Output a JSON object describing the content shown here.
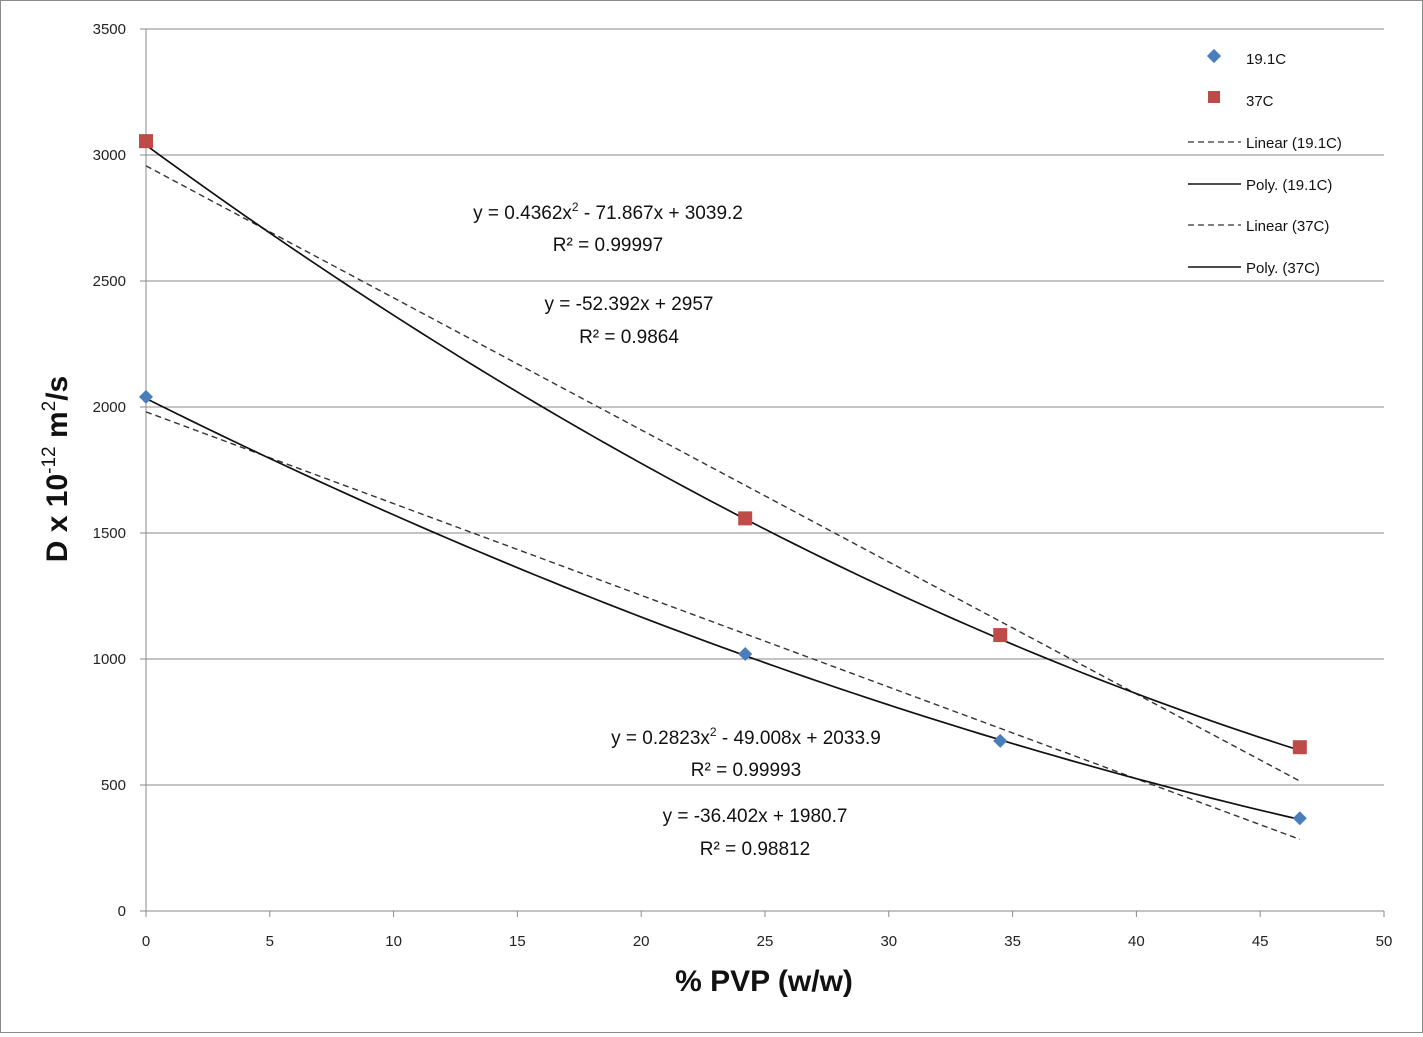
{
  "chart_data": {
    "type": "scatter",
    "title": "",
    "xlabel": "% PVP (w/w)",
    "ylabel": "D x 10-12 m2/s",
    "ylabel_parts": {
      "base": "D x 10",
      "exp1": "-12",
      "mid": " m",
      "exp2": "2",
      "end": "/s"
    },
    "xlim": [
      0,
      50
    ],
    "ylim": [
      0,
      3500
    ],
    "xticks": [
      0,
      5,
      10,
      15,
      20,
      25,
      30,
      35,
      40,
      45,
      50
    ],
    "yticks": [
      0,
      500,
      1000,
      1500,
      2000,
      2500,
      3000,
      3500
    ],
    "grid": "horizontal",
    "legend_position": "top-right",
    "series": [
      {
        "name": "19.1C",
        "marker": "diamond",
        "color": "#4a7ebb",
        "x": [
          0,
          24.2,
          34.5,
          46.6
        ],
        "y": [
          2040,
          1020,
          675,
          368
        ]
      },
      {
        "name": "37C",
        "marker": "square",
        "color": "#be4b48",
        "x": [
          0,
          24.2,
          34.5,
          46.6
        ],
        "y": [
          3055,
          1558,
          1095,
          650
        ]
      }
    ],
    "trendlines": [
      {
        "name": "Linear  (19.1C)",
        "kind": "linear",
        "style": "dashed",
        "coefficients": [
          -36.402,
          1980.7
        ],
        "equation_label": "y = -36.402x + 1980.7",
        "r2_label": "R² = 0.98812"
      },
      {
        "name": "Poly.  (19.1C)",
        "kind": "poly2",
        "style": "solid",
        "coefficients": [
          0.2823,
          -49.008,
          2033.9
        ],
        "equation_parts": [
          "y = 0.2823x",
          "2",
          " - 49.008x + 2033.9"
        ],
        "r2_label": "R² = 0.99993"
      },
      {
        "name": "Linear  (37C)",
        "kind": "linear",
        "style": "dashed",
        "coefficients": [
          -52.392,
          2957
        ],
        "equation_label": "y = -52.392x + 2957",
        "r2_label": "R² = 0.9864"
      },
      {
        "name": "Poly.  (37C)",
        "kind": "poly2",
        "style": "solid",
        "coefficients": [
          0.4362,
          -71.867,
          3039.2
        ],
        "equation_parts": [
          "y = 0.4362x",
          "2",
          " - 71.867x + 3039.2"
        ],
        "r2_label": "R² = 0.99997"
      }
    ],
    "trend_x_range": [
      0,
      46.6
    ]
  }
}
